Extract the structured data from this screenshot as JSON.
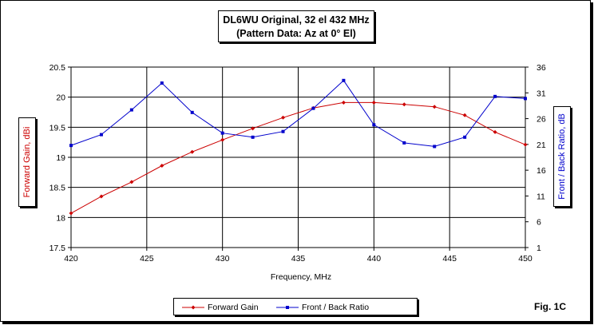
{
  "chart_data": {
    "type": "line",
    "title": "DL6WU Original, 32 el 432 MHz",
    "subtitle": "(Pattern Data: Az at 0° El)",
    "xlabel": "Frequency, MHz",
    "ylabel_left": "Forward Gain, dBi",
    "ylabel_right": "Front / Back Ratio, dB",
    "xlim": [
      420,
      450
    ],
    "ylim_left": [
      17.5,
      20.5
    ],
    "ylim_right": [
      1,
      36
    ],
    "x_ticks": [
      "420",
      "425",
      "430",
      "435",
      "440",
      "445",
      "450"
    ],
    "y_left_ticks": [
      "17.5",
      "18",
      "18.5",
      "19",
      "19.5",
      "20",
      "20.5"
    ],
    "y_right_ticks": [
      "1",
      "6",
      "11",
      "16",
      "21",
      "26",
      "31",
      "36"
    ],
    "grid": true,
    "legend": "bottom",
    "x": [
      420,
      422,
      424,
      426,
      428,
      430,
      432,
      434,
      436,
      438,
      440,
      442,
      444,
      446,
      448,
      450
    ],
    "series": [
      {
        "name": "Forward Gain",
        "axis": "left",
        "color": "#cc0000",
        "marker": "diamond",
        "values": [
          18.07,
          18.35,
          18.59,
          18.86,
          19.09,
          19.29,
          19.48,
          19.66,
          19.82,
          19.91,
          19.91,
          19.88,
          19.84,
          19.7,
          19.42,
          19.21
        ]
      },
      {
        "name": "Front / Back Ratio",
        "axis": "right",
        "color": "#0000cc",
        "marker": "square",
        "values": [
          20.8,
          22.9,
          27.7,
          32.9,
          27.2,
          23.2,
          22.4,
          23.5,
          28.0,
          33.4,
          24.8,
          21.3,
          20.6,
          22.4,
          30.3,
          29.9
        ]
      }
    ]
  },
  "figure_label": "Fig. 1C",
  "colors": {
    "axis_left_label": "#cc0000",
    "axis_right_label": "#0000cc",
    "plot_background": "#ffffff",
    "grid": "#000000"
  }
}
